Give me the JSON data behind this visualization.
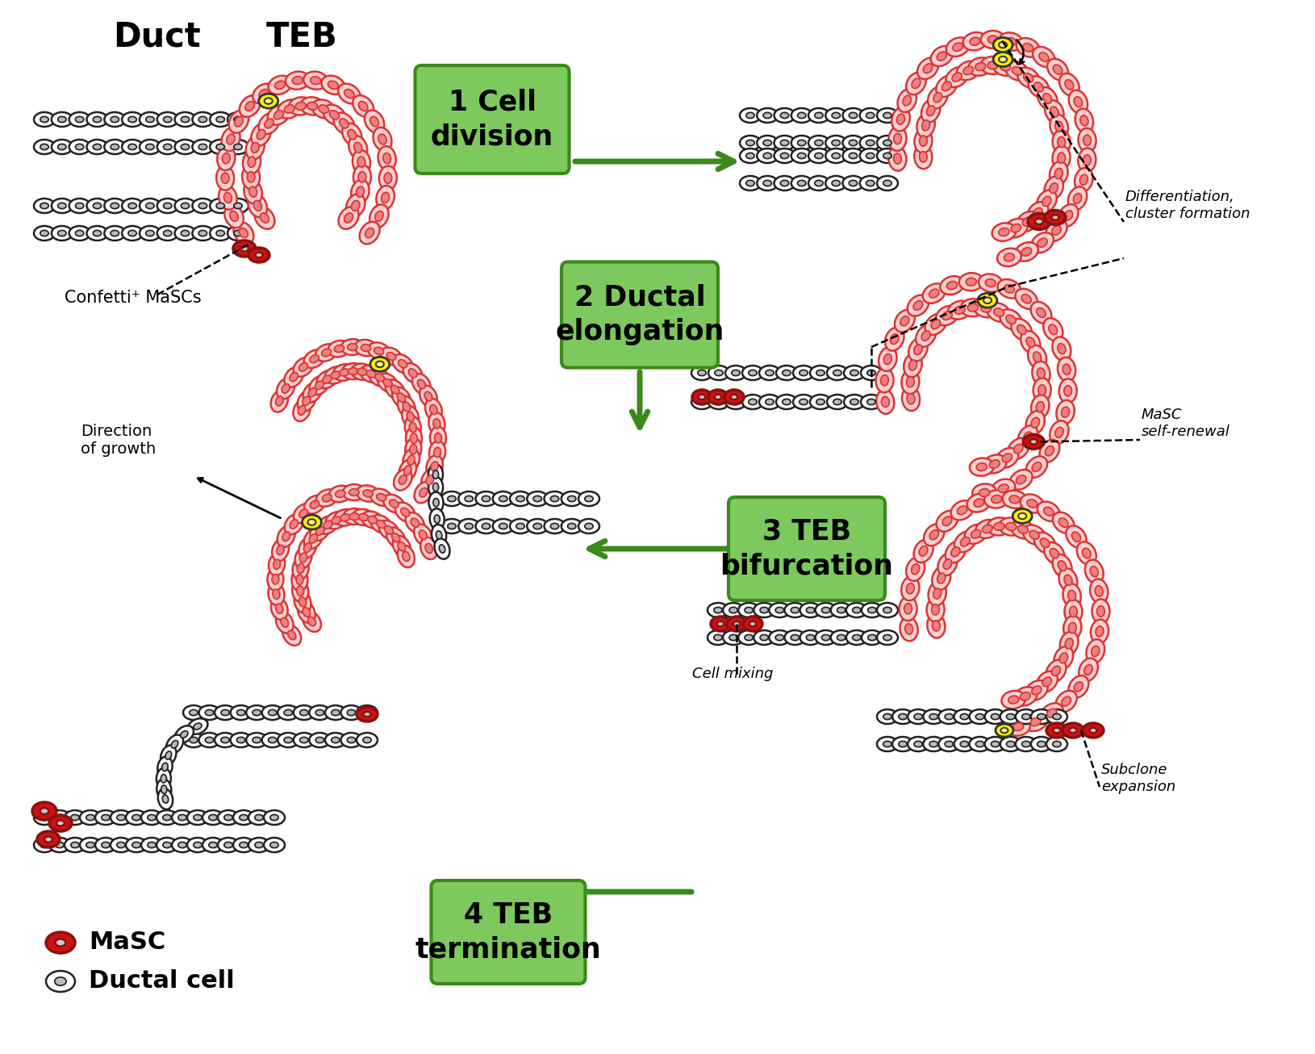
{
  "background_color": "#ffffff",
  "green_box_color": "#7dc95e",
  "green_box_edge": "#3a8a1a",
  "arrow_green": "#3a8a1a",
  "teb_outer_fill": "#f8d0d0",
  "teb_outer_edge": "#dd3333",
  "teb_inner_fill": "#f08080",
  "duct_outer_fill": "#ffffff",
  "duct_outer_edge": "#222222",
  "duct_inner_fill": "#bbbbbb",
  "masc_outer_fill": "#cc1111",
  "masc_outer_edge": "#881111",
  "masc_inner_fill": "#cccccc",
  "yellow_fill": "#ffee00",
  "yellow_edge": "#333333",
  "yellow_inner": "#ffee88",
  "label1": "1 Cell\ndivision",
  "label2": "2 Ductal\nelongation",
  "label3": "3 TEB\nbifurcation",
  "label4": "4 TEB\ntermination",
  "text_duct": "Duct",
  "text_teb": "TEB",
  "text_confetti": "Confetti⁺ MaSCs",
  "text_diff": "Differentiation,\ncluster formation",
  "text_masc_renewal": "MaSC\nself-renewal",
  "text_direction": "Direction\nof growth",
  "text_cell_mixing": "Cell mixing",
  "text_subclone": "Subclone\nexpansion",
  "legend_masc": "MaSC",
  "legend_ductal": "Ductal cell"
}
